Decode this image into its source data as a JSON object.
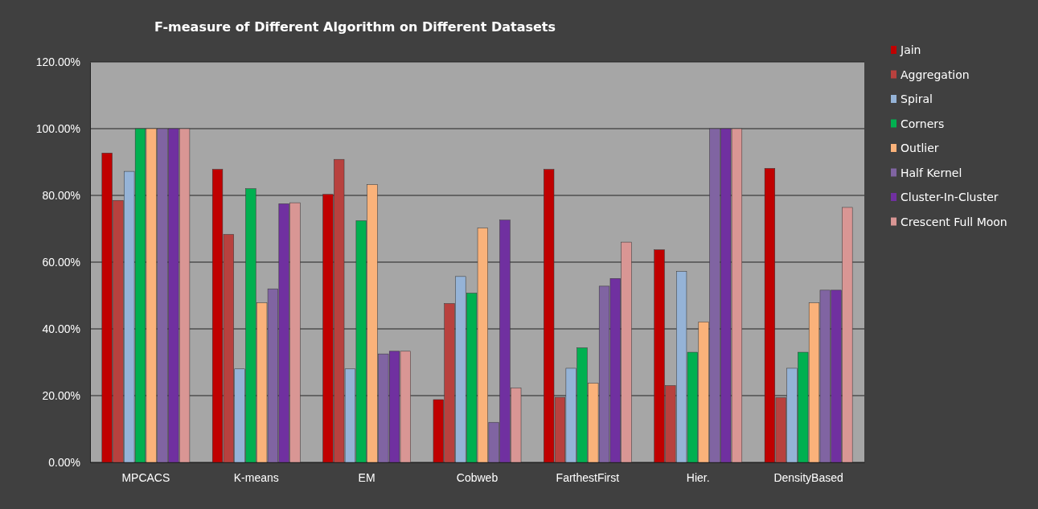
{
  "chart_data": {
    "type": "bar",
    "title": "F-measure of Different Algorithm on Different Datasets",
    "categories": [
      "MPCACS",
      "K-means",
      "EM",
      "Cobweb",
      "FarthestFirst",
      "Hier.",
      "DensityBased"
    ],
    "series": [
      {
        "name": "Jain",
        "color": "#c00000",
        "values": [
          92.7,
          87.8,
          80.3,
          18.8,
          87.8,
          63.7,
          88.1
        ]
      },
      {
        "name": "Aggregation",
        "color": "#b8413e",
        "values": [
          78.5,
          68.3,
          90.8,
          47.6,
          19.5,
          23,
          19.4
        ]
      },
      {
        "name": "Spiral",
        "color": "#95b3d7",
        "values": [
          87.2,
          28,
          28,
          55.7,
          28.2,
          57.2,
          28.2
        ]
      },
      {
        "name": "Corners",
        "color": "#00b050",
        "values": [
          100,
          82,
          72.4,
          50.7,
          34.3,
          33,
          33
        ]
      },
      {
        "name": "Outlier",
        "color": "#fab27a",
        "values": [
          100,
          47.8,
          83.2,
          70.2,
          23.7,
          42.1,
          47.8
        ]
      },
      {
        "name": "Half Kernel",
        "color": "#8064a2",
        "values": [
          100,
          52,
          32.5,
          12,
          52.8,
          100,
          51.6
        ]
      },
      {
        "name": "Cluster-In-Cluster",
        "color": "#7030a0",
        "values": [
          100,
          77.5,
          33.3,
          72.6,
          55.1,
          100,
          51.6
        ]
      },
      {
        "name": "Crescent Full Moon",
        "color": "#d99694",
        "values": [
          100,
          77.8,
          33.3,
          22.3,
          66,
          100,
          76.4
        ]
      }
    ],
    "ylim": [
      0,
      120
    ],
    "yticks": [
      {
        "value": 0,
        "label": "0.00%"
      },
      {
        "value": 20,
        "label": "20.00%"
      },
      {
        "value": 40,
        "label": "40.00%"
      },
      {
        "value": 60,
        "label": "60.00%"
      },
      {
        "value": 80,
        "label": "80.00%"
      },
      {
        "value": 100,
        "label": "100.00%"
      },
      {
        "value": 120,
        "label": "120.00%"
      }
    ],
    "grid": "y",
    "legend": "right"
  }
}
